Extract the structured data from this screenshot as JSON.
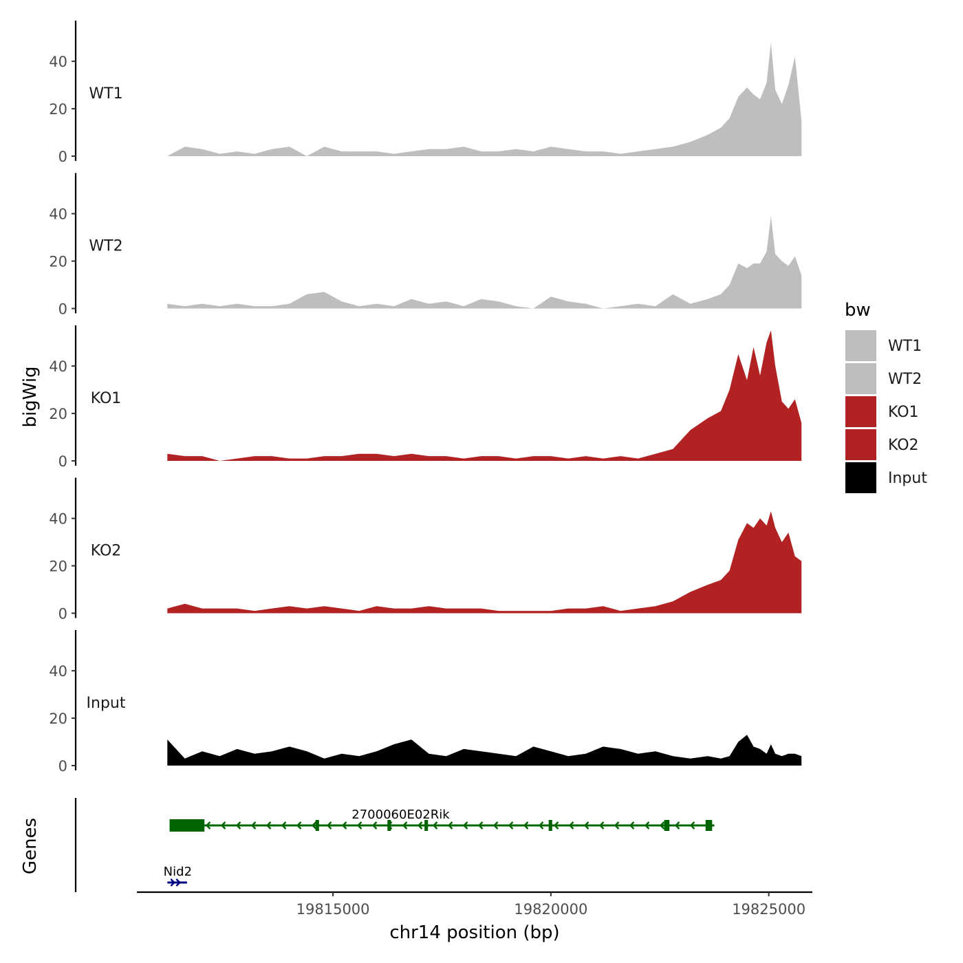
{
  "chart_data": {
    "type": "area",
    "xlabel": "chr14 position (bp)",
    "ylabel": "bigWig",
    "genes_label": "Genes",
    "xlim": [
      19810500,
      19826000
    ],
    "ylim": [
      0,
      56
    ],
    "y_ticks": [
      0,
      20,
      40
    ],
    "x_ticks": [
      19815000,
      19820000,
      19825000
    ],
    "x_tick_labels": [
      "19815000",
      "19820000",
      "19825000"
    ],
    "legend": {
      "title": "bw",
      "position": "right",
      "entries": [
        {
          "label": "WT1",
          "color": "#BEBEBE"
        },
        {
          "label": "WT2",
          "color": "#BEBEBE"
        },
        {
          "label": "KO1",
          "color": "#B22222"
        },
        {
          "label": "KO2",
          "color": "#B22222"
        },
        {
          "label": "Input",
          "color": "#000000"
        }
      ]
    },
    "x": [
      19811200,
      19811600,
      19812000,
      19812400,
      19812800,
      19813200,
      19813600,
      19814000,
      19814400,
      19814800,
      19815200,
      19815600,
      19816000,
      19816400,
      19816800,
      19817200,
      19817600,
      19818000,
      19818400,
      19818800,
      19819200,
      19819600,
      19820000,
      19820400,
      19820800,
      19821200,
      19821600,
      19822000,
      19822400,
      19822800,
      19823200,
      19823600,
      19823900,
      19824100,
      19824300,
      19824500,
      19824650,
      19824800,
      19824950,
      19825050,
      19825150,
      19825300,
      19825450,
      19825600,
      19825750
    ],
    "series": [
      {
        "name": "WT1",
        "color": "#BEBEBE",
        "values": [
          0,
          4,
          3,
          1,
          2,
          1,
          3,
          4,
          0,
          4,
          2,
          2,
          2,
          1,
          2,
          3,
          3,
          4,
          2,
          2,
          3,
          2,
          4,
          3,
          2,
          2,
          1,
          2,
          3,
          4,
          6,
          9,
          12,
          16,
          25,
          29,
          26,
          24,
          31,
          48,
          28,
          22,
          30,
          42,
          15
        ]
      },
      {
        "name": "WT2",
        "color": "#BEBEBE",
        "values": [
          2,
          1,
          2,
          1,
          2,
          1,
          1,
          2,
          6,
          7,
          3,
          1,
          2,
          1,
          4,
          2,
          3,
          1,
          4,
          3,
          1,
          0,
          5,
          3,
          2,
          0,
          1,
          2,
          1,
          6,
          2,
          4,
          6,
          10,
          19,
          17,
          19,
          19,
          24,
          39,
          23,
          20,
          18,
          22,
          14
        ]
      },
      {
        "name": "KO1",
        "color": "#B22222",
        "values": [
          3,
          2,
          2,
          0,
          1,
          2,
          2,
          1,
          1,
          2,
          2,
          3,
          3,
          2,
          3,
          2,
          2,
          1,
          2,
          2,
          1,
          2,
          2,
          1,
          2,
          1,
          2,
          1,
          3,
          5,
          13,
          18,
          21,
          30,
          45,
          34,
          48,
          36,
          50,
          55,
          40,
          25,
          22,
          26,
          16
        ]
      },
      {
        "name": "KO2",
        "color": "#B22222",
        "values": [
          2,
          4,
          2,
          2,
          2,
          1,
          2,
          3,
          2,
          3,
          2,
          1,
          3,
          2,
          2,
          3,
          2,
          2,
          2,
          1,
          1,
          1,
          1,
          2,
          2,
          3,
          1,
          2,
          3,
          5,
          9,
          12,
          14,
          18,
          31,
          38,
          36,
          40,
          37,
          43,
          36,
          30,
          34,
          24,
          22
        ]
      },
      {
        "name": "Input",
        "color": "#000000",
        "values": [
          11,
          3,
          6,
          4,
          7,
          5,
          6,
          8,
          6,
          3,
          5,
          4,
          6,
          9,
          11,
          5,
          4,
          7,
          6,
          5,
          4,
          8,
          6,
          4,
          5,
          8,
          7,
          5,
          6,
          4,
          3,
          4,
          3,
          4,
          10,
          13,
          8,
          7,
          5,
          9,
          5,
          4,
          5,
          5,
          4
        ]
      }
    ],
    "genes": [
      {
        "name": "2700060E02Rik",
        "color": "#006400",
        "strand": "-",
        "start": 19811250,
        "end": 19823750,
        "exons": [
          [
            19811250,
            19812050
          ],
          [
            19814600,
            19814680
          ],
          [
            19816250,
            19816330
          ],
          [
            19817100,
            19817180
          ],
          [
            19819950,
            19820030
          ],
          [
            19822600,
            19822720
          ],
          [
            19823550,
            19823700
          ]
        ]
      },
      {
        "name": "Nid2",
        "color": "#000080",
        "strand": "+",
        "start": 19811200,
        "end": 19811650,
        "exons": []
      }
    ]
  }
}
